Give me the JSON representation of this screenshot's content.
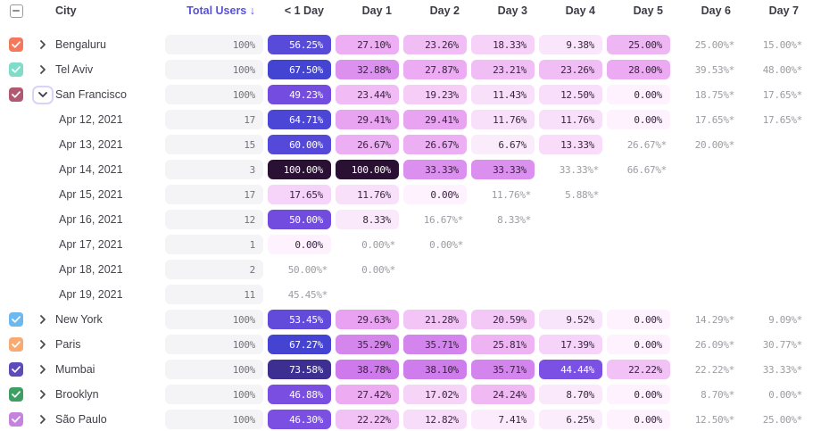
{
  "table": {
    "select_all_state": "indeterminate",
    "city_column_label": "City",
    "total_users_label": "Total Users",
    "sort_indicator": "↓",
    "day_columns": [
      "< 1 Day",
      "Day 1",
      "Day 2",
      "Day 3",
      "Day 4",
      "Day 5",
      "Day 6",
      "Day 7"
    ],
    "incomplete_marker": "*",
    "rows": [
      {
        "kind": "city",
        "label": "Bengaluru",
        "checkbox_color": "#f4785c",
        "expanded": false,
        "total": "100%",
        "cells": [
          "56.25%",
          "27.10%",
          "23.26%",
          "18.33%",
          "9.38%",
          "25.00%",
          "25.00%*",
          "15.00%*"
        ]
      },
      {
        "kind": "city",
        "label": "Tel Aviv",
        "checkbox_color": "#7edcc8",
        "expanded": false,
        "total": "100%",
        "cells": [
          "67.50%",
          "32.88%",
          "27.87%",
          "23.21%",
          "23.26%",
          "28.00%",
          "39.53%*",
          "48.00%*"
        ]
      },
      {
        "kind": "city",
        "label": "San Francisco",
        "checkbox_color": "#b05a72",
        "expanded": true,
        "total": "100%",
        "cells": [
          "49.23%",
          "23.44%",
          "19.23%",
          "11.43%",
          "12.50%",
          "0.00%",
          "18.75%*",
          "17.65%*"
        ]
      },
      {
        "kind": "date",
        "label": "Apr 12, 2021",
        "total": "17",
        "cells": [
          "64.71%",
          "29.41%",
          "29.41%",
          "11.76%",
          "11.76%",
          "0.00%",
          "17.65%*",
          "17.65%*"
        ]
      },
      {
        "kind": "date",
        "label": "Apr 13, 2021",
        "total": "15",
        "cells": [
          "60.00%",
          "26.67%",
          "26.67%",
          "6.67%",
          "13.33%",
          "26.67%*",
          "20.00%*",
          null
        ]
      },
      {
        "kind": "date",
        "label": "Apr 14, 2021",
        "total": "3",
        "cells": [
          "100.00%",
          "100.00%",
          "33.33%",
          "33.33%",
          "33.33%*",
          "66.67%*",
          null,
          null
        ]
      },
      {
        "kind": "date",
        "label": "Apr 15, 2021",
        "total": "17",
        "cells": [
          "17.65%",
          "11.76%",
          "0.00%",
          "11.76%*",
          "5.88%*",
          null,
          null,
          null
        ]
      },
      {
        "kind": "date",
        "label": "Apr 16, 2021",
        "total": "12",
        "cells": [
          "50.00%",
          "8.33%",
          "16.67%*",
          "8.33%*",
          null,
          null,
          null,
          null
        ]
      },
      {
        "kind": "date",
        "label": "Apr 17, 2021",
        "total": "1",
        "cells": [
          "0.00%",
          "0.00%*",
          "0.00%*",
          null,
          null,
          null,
          null,
          null
        ]
      },
      {
        "kind": "date",
        "label": "Apr 18, 2021",
        "total": "2",
        "cells": [
          "50.00%*",
          "0.00%*",
          null,
          null,
          null,
          null,
          null,
          null
        ]
      },
      {
        "kind": "date",
        "label": "Apr 19, 2021",
        "total": "11",
        "cells": [
          "45.45%*",
          null,
          null,
          null,
          null,
          null,
          null,
          null
        ]
      },
      {
        "kind": "city",
        "label": "New York",
        "checkbox_color": "#6cb8ef",
        "expanded": false,
        "total": "100%",
        "cells": [
          "53.45%",
          "29.63%",
          "21.28%",
          "20.59%",
          "9.52%",
          "0.00%",
          "14.29%*",
          "9.09%*"
        ]
      },
      {
        "kind": "city",
        "label": "Paris",
        "checkbox_color": "#f7ab72",
        "expanded": false,
        "total": "100%",
        "cells": [
          "67.27%",
          "35.29%",
          "35.71%",
          "25.81%",
          "17.39%",
          "0.00%",
          "26.09%*",
          "30.77%*"
        ]
      },
      {
        "kind": "city",
        "label": "Mumbai",
        "checkbox_color": "#5b4cba",
        "expanded": false,
        "total": "100%",
        "cells": [
          "73.58%",
          "38.78%",
          "38.10%",
          "35.71%",
          "44.44%",
          "22.22%",
          "22.22%*",
          "33.33%*"
        ]
      },
      {
        "kind": "city",
        "label": "Brooklyn",
        "checkbox_color": "#3f9e63",
        "expanded": false,
        "total": "100%",
        "cells": [
          "46.88%",
          "27.42%",
          "17.02%",
          "24.24%",
          "8.70%",
          "0.00%",
          "8.70%*",
          "0.00%*"
        ]
      },
      {
        "kind": "city",
        "label": "São Paulo",
        "checkbox_color": "#c583e0",
        "expanded": false,
        "total": "100%",
        "cells": [
          "46.30%",
          "22.22%",
          "12.82%",
          "7.41%",
          "6.25%",
          "0.00%",
          "12.50%*",
          "25.00%*"
        ]
      }
    ]
  },
  "colors": {
    "sort_header_text": "#5752d9",
    "header_text": "#3c3c46",
    "label_text": "#40404a",
    "total_pill_bg": "#f4f4f6",
    "total_pill_text": "#72727b",
    "incomplete_text": "#9b9ba3",
    "cell_text_dark": "#3a2540",
    "cell_text_light": "#ffffff",
    "white_text_threshold": 42,
    "scale_anchors": [
      [
        0,
        "#fdf2fe"
      ],
      [
        7,
        "#fbecfc"
      ],
      [
        12,
        "#f8dffa"
      ],
      [
        18,
        "#f6d2f8"
      ],
      [
        23,
        "#f1bef5"
      ],
      [
        28,
        "#ecaaf2"
      ],
      [
        31,
        "#e49bf0"
      ],
      [
        34,
        "#d88bee"
      ],
      [
        38,
        "#cf7cec"
      ],
      [
        42,
        "#c870ea"
      ],
      [
        44,
        "#7a52e4"
      ],
      [
        48,
        "#7a4de0"
      ],
      [
        52,
        "#674adc"
      ],
      [
        57,
        "#564bda"
      ],
      [
        63,
        "#5147d8"
      ],
      [
        68,
        "#4344d1"
      ],
      [
        74,
        "#3d2d8c"
      ],
      [
        100,
        "#2a1033"
      ]
    ]
  }
}
